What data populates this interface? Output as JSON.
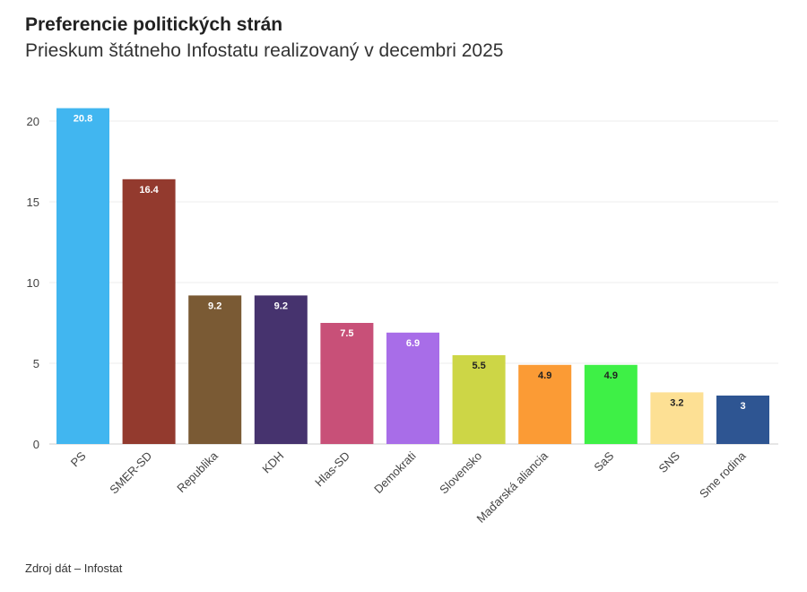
{
  "chart_data": {
    "type": "bar",
    "title": "Preferencie politických strán",
    "subtitle": "Prieskum štátneho Infostatu realizovaný v decembri 2025",
    "source": "Zdroj dát – Infostat",
    "categories": [
      "PS",
      "SMER-SD",
      "Republika",
      "KDH",
      "Hlas-SD",
      "Demokrati",
      "Slovensko",
      "Maďarská aliancia",
      "SaS",
      "SNS",
      "Sme rodina"
    ],
    "values": [
      20.8,
      16.4,
      9.2,
      9.2,
      7.5,
      6.9,
      5.5,
      4.9,
      4.9,
      3.2,
      3
    ],
    "data_labels": [
      "20.8",
      "16.4",
      "9.2",
      "9.2",
      "7.5",
      "6.9",
      "5.5",
      "4.9",
      "4.9",
      "3.2",
      "3"
    ],
    "colors": [
      "#41b6f0",
      "#933a2e",
      "#7a5a34",
      "#46336e",
      "#c85078",
      "#a86de8",
      "#cdd646",
      "#fb9b35",
      "#3ef046",
      "#fde094",
      "#2e5592"
    ],
    "label_colors": [
      "#ffffff",
      "#ffffff",
      "#ffffff",
      "#ffffff",
      "#ffffff",
      "#ffffff",
      "#222222",
      "#222222",
      "#222222",
      "#222222",
      "#ffffff"
    ],
    "yticks": [
      "0",
      "5",
      "10",
      "15",
      "20"
    ],
    "ylim": [
      0,
      20.8
    ],
    "grid": true,
    "xlabel": "",
    "ylabel": ""
  }
}
